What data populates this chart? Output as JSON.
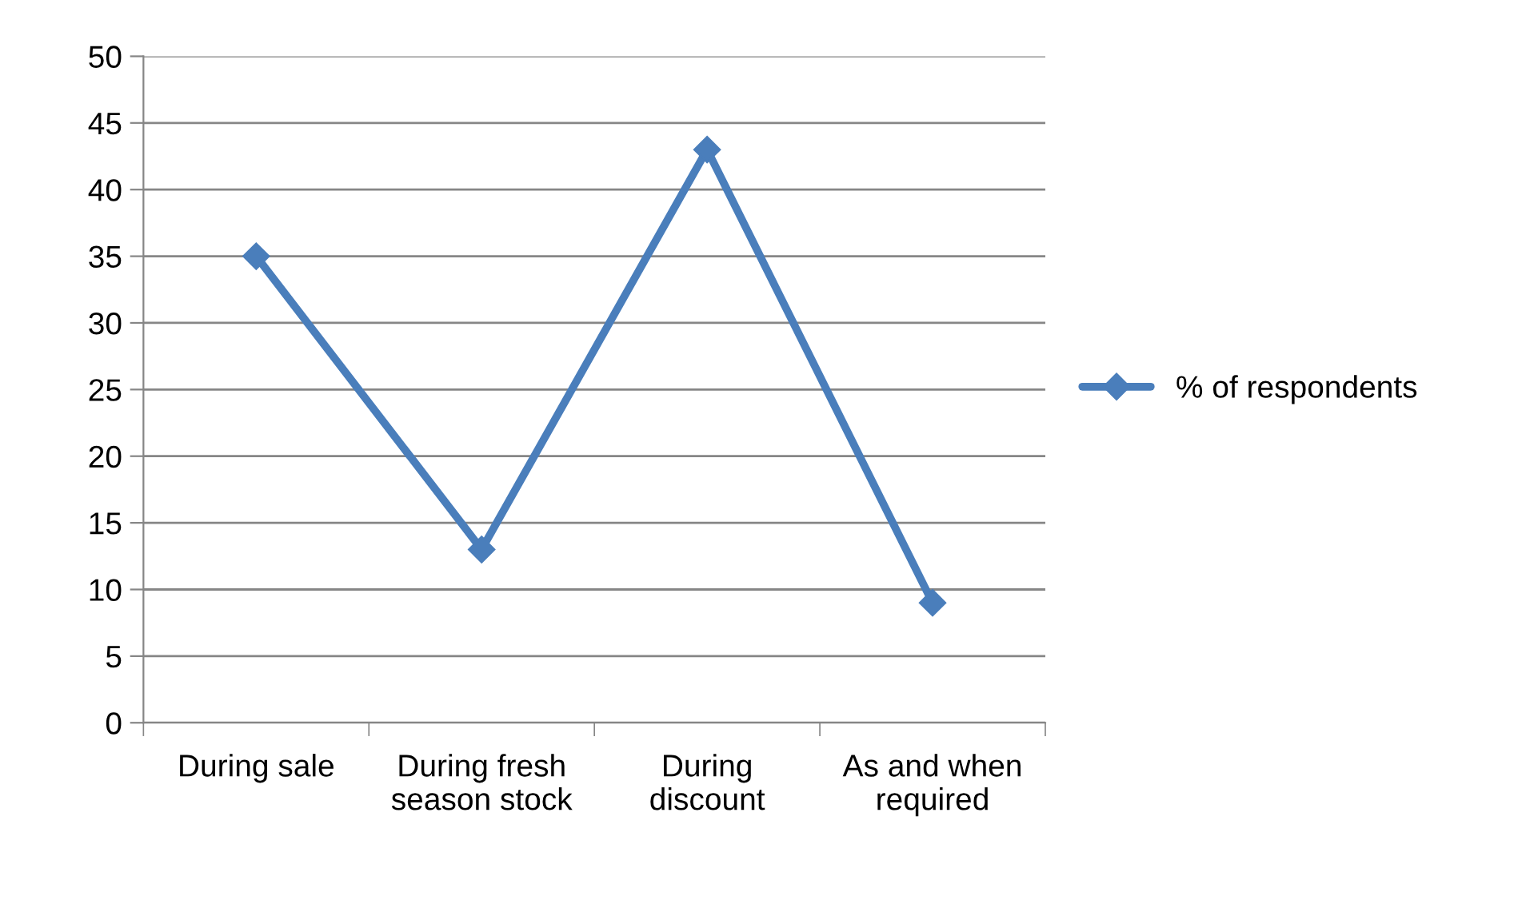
{
  "chart_data": {
    "type": "line",
    "categories": [
      "During sale",
      "During fresh season stock",
      "During discount",
      "As and when required"
    ],
    "series": [
      {
        "name": "% of respondents",
        "color": "#4a7ebb",
        "values": [
          35,
          13,
          43,
          9
        ]
      }
    ],
    "ylim": [
      0,
      50
    ],
    "yticks": [
      0,
      5,
      10,
      15,
      20,
      25,
      30,
      35,
      40,
      45,
      50
    ],
    "grid": "y",
    "legend": "right",
    "marker": "diamond",
    "line_style": "solid"
  }
}
